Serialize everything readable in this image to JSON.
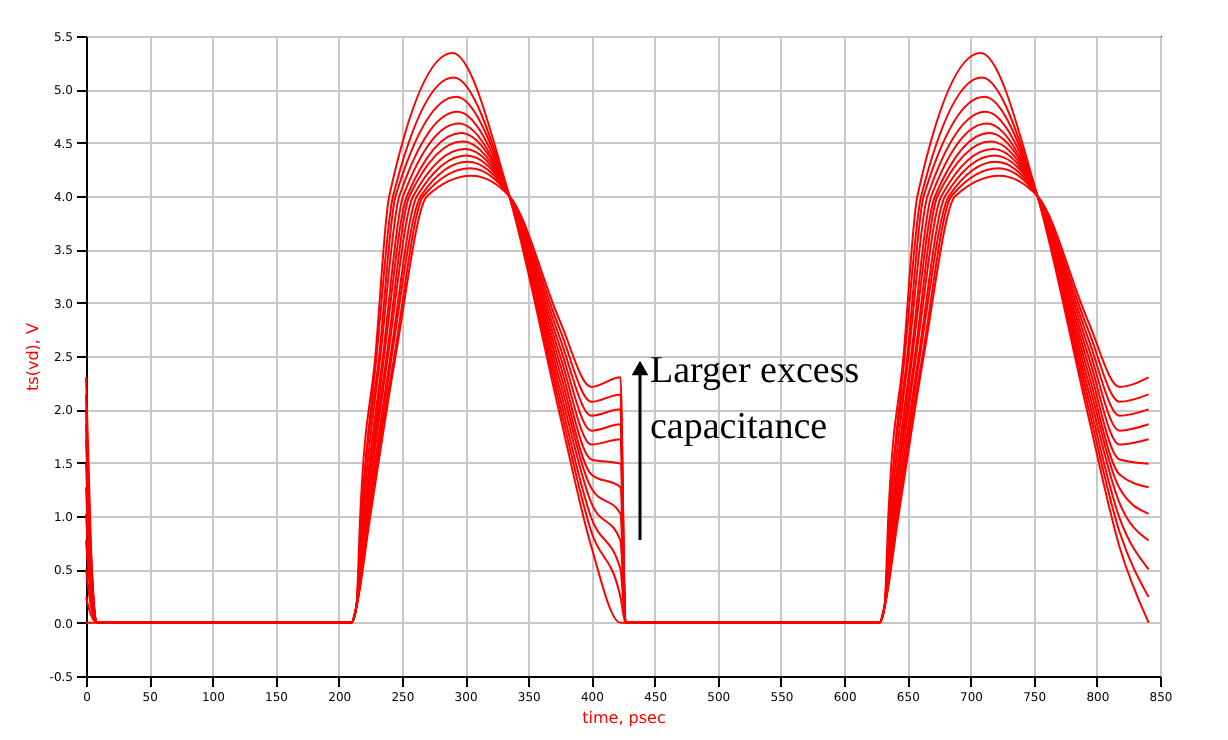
{
  "chart_data": {
    "type": "line",
    "xlabel": "time, psec",
    "ylabel": "ts(vd), V",
    "xlim": [
      0,
      850
    ],
    "ylim": [
      -0.5,
      5.5
    ],
    "xticks": [
      0,
      50,
      100,
      150,
      200,
      250,
      300,
      350,
      400,
      450,
      500,
      550,
      600,
      650,
      700,
      750,
      800,
      850
    ],
    "yticks": [
      -0.5,
      {
        "value": 0,
        "label": "0.0"
      },
      0.5,
      {
        "value": 1,
        "label": "1.0"
      },
      1.5,
      {
        "value": 2,
        "label": "2.0"
      },
      2.5,
      {
        "value": 3,
        "label": "3.0"
      },
      3.5,
      {
        "value": 4,
        "label": "4.0"
      },
      4.5,
      {
        "value": 5,
        "label": "5.0"
      },
      5.5
    ],
    "grid": true,
    "annotations": [
      "Larger excess capacitance"
    ],
    "series": [
      {
        "color": "#ff0000",
        "x": [
          0,
          4,
          9,
          210,
          214,
          217,
          229,
          240,
          290,
          335,
          375,
          400,
          423,
          427,
          628,
          632,
          635,
          647,
          658,
          708,
          753,
          793,
          818,
          841
        ],
        "values": [
          0,
          0,
          0,
          0,
          0.15,
          1,
          2.5,
          4,
          5.34,
          4.0,
          1.95,
          0.71,
          0,
          0,
          0,
          0.15,
          1,
          2.5,
          4,
          5.34,
          4.0,
          1.95,
          0.71,
          0
        ]
      },
      {
        "color": "#ff0000",
        "x": [
          0,
          4,
          9,
          210,
          214,
          218,
          230,
          243,
          291,
          335,
          375,
          400,
          423,
          427,
          628,
          632,
          636,
          648,
          661,
          709,
          753,
          793,
          818,
          841
        ],
        "values": [
          0.24,
          0.07,
          0,
          0,
          0.15,
          1,
          2.5,
          4,
          5.11,
          4.0,
          2.03,
          0.85,
          0.24,
          0,
          0,
          0.15,
          1,
          2.5,
          4,
          5.11,
          4.0,
          2.03,
          0.85,
          0.24
        ]
      },
      {
        "color": "#ff0000",
        "x": [
          0,
          4,
          9,
          210,
          214,
          218,
          232,
          245,
          293,
          335,
          375,
          400,
          423,
          427,
          628,
          632,
          636,
          650,
          663,
          711,
          753,
          793,
          818,
          841
        ],
        "values": [
          0.5,
          0.15,
          0,
          0,
          0.15,
          1,
          2.5,
          4,
          4.93,
          4.0,
          2.11,
          0.98,
          0.5,
          0,
          0,
          0.15,
          1,
          2.5,
          4,
          4.93,
          4.0,
          2.11,
          0.98,
          0.5
        ]
      },
      {
        "color": "#ff0000",
        "x": [
          0,
          4,
          9,
          210,
          214,
          219,
          233,
          248,
          294,
          335,
          375,
          400,
          423,
          427,
          628,
          632,
          637,
          651,
          666,
          712,
          753,
          793,
          818,
          841
        ],
        "values": [
          0.77,
          0.23,
          0,
          0,
          0.15,
          1,
          2.5,
          4,
          4.79,
          4.0,
          2.19,
          1.12,
          0.77,
          0,
          0,
          0.15,
          1,
          2.5,
          4,
          4.79,
          4.0,
          2.19,
          1.12,
          0.77
        ]
      },
      {
        "color": "#ff0000",
        "x": [
          0,
          4,
          9,
          210,
          214,
          220,
          235,
          251,
          295,
          335,
          375,
          400,
          423,
          427,
          628,
          632,
          638,
          653,
          669,
          713,
          753,
          793,
          818,
          841
        ],
        "values": [
          1.02,
          0.31,
          0,
          0,
          0.15,
          1,
          2.5,
          4,
          4.68,
          4.0,
          2.27,
          1.26,
          1.02,
          0,
          0,
          0.15,
          1,
          2.5,
          4,
          4.68,
          4.0,
          2.27,
          1.26,
          1.02
        ]
      },
      {
        "color": "#ff0000",
        "x": [
          0,
          4,
          9,
          210,
          214,
          221,
          236,
          254,
          297,
          335,
          375,
          400,
          423,
          427,
          628,
          632,
          639,
          654,
          672,
          715,
          753,
          793,
          818,
          841
        ],
        "values": [
          1.27,
          0.38,
          0,
          0,
          0.15,
          1,
          2.5,
          4,
          4.59,
          4.0,
          2.35,
          1.39,
          1.27,
          0,
          0,
          0.15,
          1,
          2.5,
          4,
          4.59,
          4.0,
          2.35,
          1.39,
          1.27
        ]
      },
      {
        "color": "#ff0000",
        "x": [
          0,
          4,
          9,
          210,
          214,
          221,
          238,
          256,
          298,
          335,
          375,
          400,
          423,
          427,
          628,
          632,
          639,
          656,
          674,
          716,
          753,
          793,
          818,
          841
        ],
        "values": [
          1.49,
          0.45,
          0,
          0,
          0.15,
          1,
          2.5,
          4,
          4.51,
          4.0,
          2.43,
          1.53,
          1.49,
          0,
          0,
          0.15,
          1,
          2.5,
          4,
          4.51,
          4.0,
          2.43,
          1.53,
          1.49
        ]
      },
      {
        "color": "#ff0000",
        "x": [
          0,
          4,
          9,
          210,
          214,
          222,
          239,
          259,
          300,
          335,
          375,
          400,
          423,
          427,
          628,
          632,
          640,
          657,
          677,
          718,
          753,
          793,
          818,
          841
        ],
        "values": [
          1.72,
          0.52,
          0,
          0,
          0.15,
          1,
          2.5,
          4,
          4.44,
          4.0,
          2.51,
          1.67,
          1.72,
          0,
          0,
          0.15,
          1,
          2.5,
          4,
          4.44,
          4.0,
          2.51,
          1.67,
          1.72
        ]
      },
      {
        "color": "#ff0000",
        "x": [
          0,
          4,
          9,
          210,
          214,
          223,
          241,
          262,
          301,
          335,
          375,
          400,
          423,
          427,
          628,
          632,
          641,
          659,
          680,
          719,
          753,
          793,
          818,
          841
        ],
        "values": [
          1.86,
          0.56,
          0,
          0,
          0.15,
          1,
          2.5,
          4,
          4.38,
          4.0,
          2.59,
          1.8,
          1.86,
          0,
          0,
          0.15,
          1,
          2.5,
          4,
          4.38,
          4.0,
          2.59,
          1.8,
          1.86
        ]
      },
      {
        "color": "#ff0000",
        "x": [
          0,
          4,
          9,
          210,
          214,
          224,
          242,
          265,
          302,
          335,
          375,
          400,
          423,
          427,
          628,
          632,
          642,
          660,
          683,
          720,
          753,
          793,
          818,
          841
        ],
        "values": [
          2.0,
          0.6,
          0,
          0,
          0.15,
          1,
          2.5,
          4,
          4.32,
          4.0,
          2.67,
          1.94,
          2.0,
          0,
          0,
          0.15,
          1,
          2.5,
          4,
          4.32,
          4.0,
          2.67,
          1.94,
          2.0
        ]
      },
      {
        "color": "#ff0000",
        "x": [
          0,
          4,
          9,
          210,
          214,
          224,
          244,
          267,
          304,
          335,
          375,
          400,
          423,
          427,
          628,
          632,
          642,
          662,
          685,
          722,
          753,
          793,
          818,
          841
        ],
        "values": [
          2.14,
          0.64,
          0,
          0,
          0.15,
          1,
          2.5,
          4,
          4.26,
          4.0,
          2.75,
          2.07,
          2.14,
          0,
          0,
          0.15,
          1,
          2.5,
          4,
          4.26,
          4.0,
          2.75,
          2.07,
          2.14
        ]
      },
      {
        "color": "#ff0000",
        "x": [
          0,
          4,
          9,
          210,
          214,
          225,
          245,
          270,
          305,
          335,
          375,
          400,
          423,
          427,
          628,
          632,
          643,
          663,
          688,
          723,
          753,
          793,
          818,
          841
        ],
        "values": [
          2.3,
          0.69,
          0,
          0,
          0.15,
          1,
          2.5,
          4,
          4.19,
          4.0,
          2.83,
          2.21,
          2.3,
          0,
          0,
          0.15,
          1,
          2.5,
          4,
          4.19,
          4.0,
          2.83,
          2.21,
          2.3
        ]
      }
    ]
  }
}
